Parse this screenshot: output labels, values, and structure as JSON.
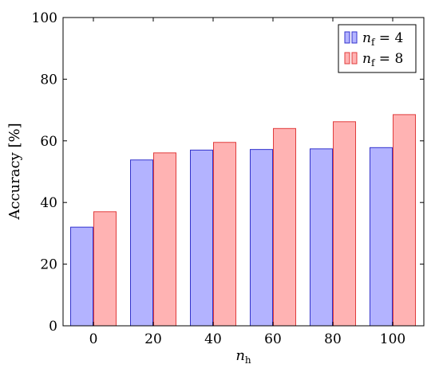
{
  "chart_data": {
    "type": "bar",
    "categories": [
      "0",
      "20",
      "40",
      "60",
      "80",
      "100"
    ],
    "series": [
      {
        "name_main": "n",
        "name_sub": "f",
        "name_rest": " = 4",
        "values": [
          32,
          53.8,
          57,
          57.2,
          57.4,
          57.8
        ],
        "fill": "#b3b3ff",
        "stroke": "#3333cc"
      },
      {
        "name_main": "n",
        "name_sub": "f",
        "name_rest": " = 8",
        "values": [
          37,
          56.1,
          59.5,
          64,
          66.2,
          68.5
        ],
        "fill": "#ffb3b3",
        "stroke": "#e03c3c"
      }
    ],
    "ylim": [
      0,
      100
    ],
    "yticks": [
      "0",
      "20",
      "40",
      "60",
      "80",
      "100"
    ],
    "ylabel": "Accuracy [%]",
    "xlabel_main": "n",
    "xlabel_sub": "h",
    "legend_position": "top-right",
    "grid": false
  }
}
